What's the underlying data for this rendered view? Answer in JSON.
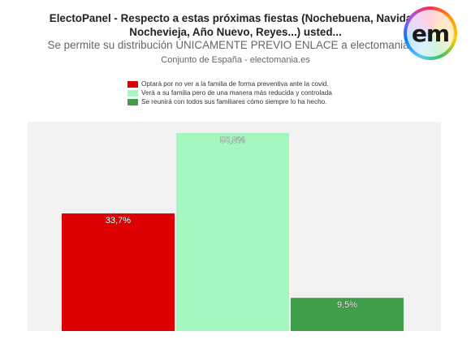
{
  "header": {
    "title_line1": "ElectoPanel - Respecto a estas próximas fiestas (Nochebuena, Navidad,",
    "title_line2": "Nochevieja, Año Nuevo, Reyes...) usted...",
    "subtitle": "Se permite su distribución ÚNICAMENTE PREVIO ENLACE a electomania.es",
    "source": "Conjunto de España - electomania.es",
    "logo_text": "em"
  },
  "chart_data": {
    "type": "bar",
    "title": "ElectoPanel - Respecto a estas próximas fiestas (Nochebuena, Navidad, Nochevieja, Año Nuevo, Reyes...) usted...",
    "xlabel": "",
    "ylabel": "",
    "ylim": [
      0,
      60
    ],
    "grid": false,
    "legend_position": "top",
    "series": [
      {
        "name": "Optará por no ver a la familia de forma preventiva ante la covid.",
        "value": 33.7,
        "label": "33,7%",
        "color": "#dd0000"
      },
      {
        "name": "Verá a su familia pero de una manera más reducida y controlada",
        "value": 56.8,
        "label": "56,8%",
        "color": "#a4f7bf"
      },
      {
        "name": "Se reunirá con todos sus familiares cómo siempre lo ha hecho.",
        "value": 9.5,
        "label": "9,5%",
        "color": "#3e9e4a"
      }
    ]
  },
  "colors": {
    "plot_background": "#f2f2f2"
  }
}
